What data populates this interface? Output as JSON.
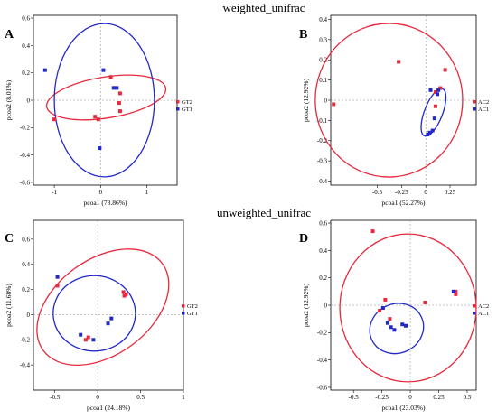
{
  "titles": [
    "weighted_unifrac",
    "unweighted_unifrac"
  ],
  "chart_data": [
    {
      "type": "scatter",
      "panel": "A",
      "xlabel": "pcoa1 (78.86%)",
      "ylabel": "pcoa2 (8.01%)",
      "xlim": [
        -1.45,
        1.65
      ],
      "ylim": [
        -0.62,
        0.62
      ],
      "xticks": [
        -1,
        0,
        1
      ],
      "yticks": [
        -0.6,
        -0.4,
        -0.2,
        0,
        0.2,
        0.4,
        0.6
      ],
      "series": [
        {
          "name": "GT2",
          "color": "#e8283c",
          "points": [
            [
              -1.0,
              -0.14
            ],
            [
              -0.12,
              -0.12
            ],
            [
              -0.05,
              -0.14
            ],
            [
              0.22,
              0.17
            ],
            [
              0.42,
              0.05
            ],
            [
              0.4,
              -0.02
            ],
            [
              0.42,
              -0.08
            ]
          ]
        },
        {
          "name": "GT1",
          "color": "#2229c8",
          "points": [
            [
              -1.2,
              0.22
            ],
            [
              0.06,
              0.22
            ],
            [
              0.28,
              0.09
            ],
            [
              0.35,
              0.09
            ],
            [
              -0.02,
              -0.35
            ]
          ]
        }
      ],
      "ellipses": [
        {
          "series": "GT2",
          "cx": 0.12,
          "cy": 0.02,
          "rx": 1.3,
          "ry": 0.15,
          "angle": 9
        },
        {
          "series": "GT1",
          "cx": 0.08,
          "cy": 0.0,
          "rx": 1.08,
          "ry": 0.56,
          "angle": 0
        }
      ]
    },
    {
      "type": "scatter",
      "panel": "B",
      "xlabel": "pcoa1 (52.27%)",
      "ylabel": "pcoa2 (12.92%)",
      "xlim": [
        -0.98,
        0.52
      ],
      "ylim": [
        -0.42,
        0.42
      ],
      "xticks": [
        -0.5,
        -0.25,
        0,
        0.25
      ],
      "yticks": [
        -0.4,
        -0.3,
        -0.2,
        -0.1,
        0,
        0.1,
        0.2,
        0.3,
        0.4
      ],
      "series": [
        {
          "name": "AC2",
          "color": "#e8283c",
          "points": [
            [
              -0.95,
              -0.02
            ],
            [
              -0.28,
              0.19
            ],
            [
              0.2,
              0.15
            ],
            [
              0.15,
              0.06
            ],
            [
              0.1,
              0.04
            ],
            [
              0.1,
              -0.03
            ]
          ]
        },
        {
          "name": "AC1",
          "color": "#2229c8",
          "points": [
            [
              0.05,
              0.05
            ],
            [
              0.13,
              0.05
            ],
            [
              0.12,
              0.03
            ],
            [
              0.09,
              -0.09
            ],
            [
              0.07,
              -0.15
            ],
            [
              0.04,
              -0.16
            ],
            [
              0.02,
              -0.17
            ]
          ]
        }
      ],
      "ellipses": [
        {
          "series": "AC2",
          "cx": -0.38,
          "cy": 0.0,
          "rx": 0.76,
          "ry": 0.38,
          "angle": 0
        },
        {
          "series": "AC1",
          "cx": 0.08,
          "cy": -0.06,
          "rx": 0.26,
          "ry": 0.045,
          "angle": 69
        }
      ]
    },
    {
      "type": "scatter",
      "panel": "C",
      "xlabel": "pcoa1 (24.18%)",
      "ylabel": "pcoa2 (11.68%)",
      "xlim": [
        -0.75,
        1.0
      ],
      "ylim": [
        -0.6,
        0.75
      ],
      "xticks": [
        -0.5,
        0,
        0.5,
        1
      ],
      "yticks": [
        -0.4,
        -0.2,
        0,
        0.2,
        0.4,
        0.6
      ],
      "series": [
        {
          "name": "GT2",
          "color": "#e8283c",
          "points": [
            [
              -0.47,
              0.23
            ],
            [
              -0.14,
              -0.2
            ],
            [
              -0.11,
              -0.18
            ],
            [
              0.3,
              0.18
            ],
            [
              0.33,
              0.16
            ],
            [
              0.31,
              0.15
            ]
          ]
        },
        {
          "name": "GT1",
          "color": "#2229c8",
          "points": [
            [
              -0.47,
              0.3
            ],
            [
              -0.2,
              -0.16
            ],
            [
              -0.05,
              -0.2
            ],
            [
              0.12,
              -0.07
            ],
            [
              0.16,
              -0.03
            ]
          ]
        }
      ],
      "ellipses": [
        {
          "series": "GT2",
          "cx": 0.06,
          "cy": 0.06,
          "rx": 0.86,
          "ry": 0.38,
          "angle": 36
        },
        {
          "series": "GT1",
          "cx": -0.04,
          "cy": 0.01,
          "rx": 0.48,
          "ry": 0.3,
          "angle": 0
        }
      ]
    },
    {
      "type": "scatter",
      "panel": "D",
      "xlabel": "pcoa1 (23.03%)",
      "ylabel": "pcoa2 (12.92%)",
      "xlim": [
        -0.7,
        0.58
      ],
      "ylim": [
        -0.62,
        0.62
      ],
      "xticks": [
        -0.5,
        -0.25,
        0,
        0.25,
        0.5
      ],
      "yticks": [
        -0.6,
        -0.4,
        -0.2,
        0,
        0.2,
        0.4,
        0.6
      ],
      "series": [
        {
          "name": "AC2",
          "color": "#e8283c",
          "points": [
            [
              -0.33,
              0.54
            ],
            [
              -0.22,
              0.04
            ],
            [
              0.13,
              0.02
            ],
            [
              0.4,
              0.1
            ],
            [
              0.4,
              0.08
            ],
            [
              -0.27,
              -0.04
            ],
            [
              -0.18,
              -0.1
            ]
          ]
        },
        {
          "name": "AC1",
          "color": "#2229c8",
          "points": [
            [
              0.38,
              0.1
            ],
            [
              -0.24,
              -0.02
            ],
            [
              -0.2,
              -0.13
            ],
            [
              -0.17,
              -0.16
            ],
            [
              -0.14,
              -0.18
            ],
            [
              -0.07,
              -0.14
            ],
            [
              -0.04,
              -0.15
            ]
          ]
        }
      ],
      "ellipses": [
        {
          "series": "AC2",
          "cx": -0.02,
          "cy": -0.02,
          "rx": 0.6,
          "ry": 0.54,
          "angle": 0
        },
        {
          "series": "AC1",
          "cx": -0.12,
          "cy": -0.17,
          "rx": 0.24,
          "ry": 0.18,
          "angle": 25
        }
      ]
    }
  ]
}
